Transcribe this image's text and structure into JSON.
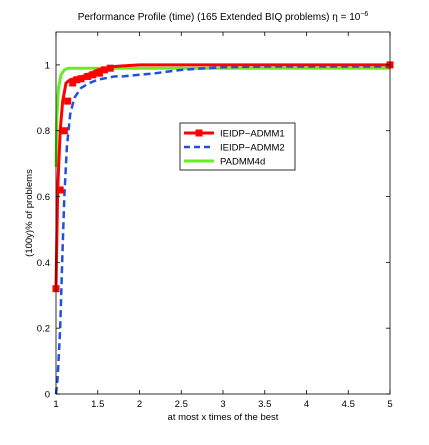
{
  "chart_data": {
    "type": "line",
    "title_main": "Performance Profile (time) (165 Extended BIQ problems) η = 10",
    "title_exponent": "−6",
    "xlabel": "at most x times of the best",
    "ylabel": "(100y)% of problems",
    "xlim": [
      1,
      5
    ],
    "ylim": [
      0,
      1.1
    ],
    "x_ticks": [
      1,
      1.5,
      2,
      2.5,
      3,
      3.5,
      4,
      4.5,
      5
    ],
    "x_tick_labels": [
      "1",
      "1.5",
      "2",
      "2.5",
      "3",
      "3.5",
      "4",
      "4.5",
      "5"
    ],
    "y_ticks": [
      0,
      0.2,
      0.4,
      0.6,
      0.8,
      1
    ],
    "y_tick_labels": [
      "0",
      "0.2",
      "0.4",
      "0.6",
      "0.8",
      "1"
    ],
    "grid": false,
    "legend_position": "center-right",
    "series": [
      {
        "name": "IEIDP−ADMM1",
        "color": "#ff0000",
        "style": "solid",
        "marker": "square",
        "x": [
          1.0,
          1.02,
          1.05,
          1.08,
          1.12,
          1.17,
          1.22,
          1.28,
          1.35,
          1.42,
          1.5,
          1.6,
          1.7,
          1.8,
          2.0,
          5.0
        ],
        "y": [
          0.32,
          0.62,
          0.8,
          0.89,
          0.945,
          0.955,
          0.958,
          0.962,
          0.968,
          0.975,
          0.985,
          0.99,
          0.995,
          0.997,
          1.0,
          1.0
        ],
        "markers_x": [
          1.0,
          1.05,
          1.1,
          1.14,
          1.2,
          1.25,
          1.3,
          1.38,
          1.44,
          1.52,
          1.58,
          1.65,
          5.0
        ],
        "markers_y": [
          0.32,
          0.62,
          0.8,
          0.89,
          0.945,
          0.955,
          0.958,
          0.965,
          0.97,
          0.975,
          0.985,
          0.99,
          1.0
        ]
      },
      {
        "name": "IEIDP−ADMM2",
        "color": "#2050e0",
        "style": "dashed",
        "x": [
          1.0,
          1.02,
          1.05,
          1.08,
          1.1,
          1.13,
          1.17,
          1.22,
          1.3,
          1.4,
          1.5,
          1.6,
          1.7,
          1.8,
          1.9,
          2.0,
          2.2,
          2.5,
          2.8,
          3.0,
          3.5,
          5.0
        ],
        "y": [
          0.0,
          0.05,
          0.2,
          0.45,
          0.6,
          0.75,
          0.85,
          0.9,
          0.93,
          0.945,
          0.955,
          0.96,
          0.965,
          0.965,
          0.968,
          0.97,
          0.975,
          0.985,
          0.99,
          0.993,
          0.995,
          0.995
        ]
      },
      {
        "name": "PADMM4d",
        "color": "#66ee22",
        "style": "solid",
        "x": [
          1.0,
          1.01,
          1.03,
          1.06,
          1.1,
          1.15,
          1.2,
          1.3,
          1.5,
          2.0,
          3.0,
          5.0
        ],
        "y": [
          0.69,
          0.84,
          0.93,
          0.97,
          0.985,
          0.99,
          0.99,
          0.99,
          0.99,
          0.99,
          0.99,
          0.99
        ]
      }
    ]
  }
}
